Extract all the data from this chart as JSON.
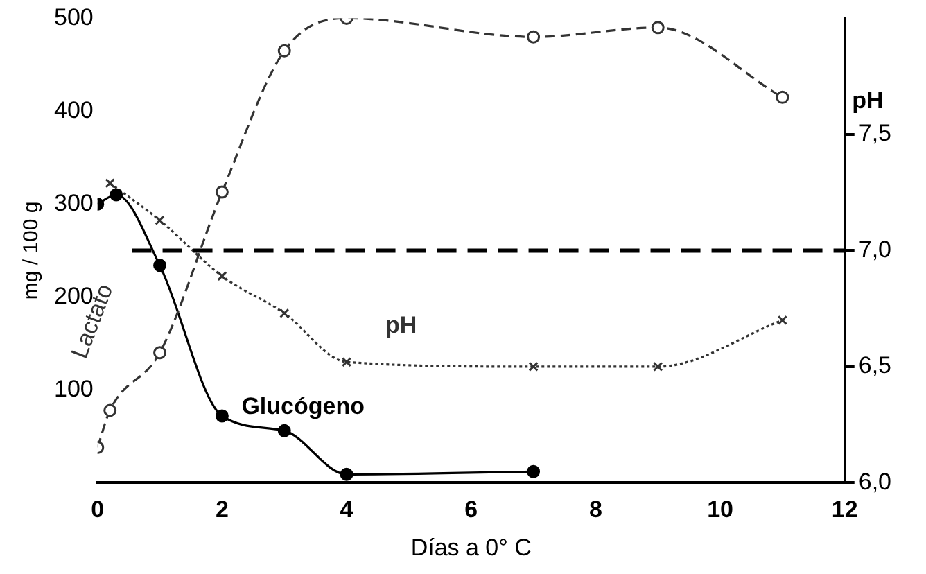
{
  "chart_data": {
    "type": "line",
    "xlabel": "Días a 0° C",
    "ylabel": "mg / 100 g",
    "y2label": "pH",
    "xlim": [
      0,
      12
    ],
    "xticks": [
      0,
      2,
      4,
      6,
      8,
      10,
      12
    ],
    "ylim": [
      0,
      500
    ],
    "yticks": [
      100,
      200,
      300,
      400,
      500
    ],
    "y2lim": [
      6,
      8
    ],
    "y2ticks": [
      {
        "value": 6,
        "label": "6,0"
      },
      {
        "value": 6.5,
        "label": "6,5"
      },
      {
        "value": 7,
        "label": "7,0"
      },
      {
        "value": 7.5,
        "label": "7,5"
      }
    ],
    "grid": false,
    "legend": false,
    "ref_lines": [
      {
        "axis": "y2",
        "value": 7,
        "color": "#000000",
        "line_style": "dashed"
      }
    ],
    "series": [
      {
        "name": "Lactato",
        "color": "#333333",
        "marker": "circle",
        "line_style": "dashed",
        "x": [
          0,
          0.2,
          1,
          2,
          3,
          4,
          7,
          9,
          11
        ],
        "values": [
          38,
          78,
          140,
          313,
          465,
          500,
          480,
          490,
          415
        ]
      },
      {
        "name": "Glucógeno",
        "color": "#000000",
        "marker": "circle",
        "line_style": "solid",
        "x": [
          0,
          0.3,
          1,
          2,
          3,
          4,
          7
        ],
        "values": [
          300,
          310,
          234,
          72,
          56,
          9,
          12
        ]
      },
      {
        "name": "pH",
        "color": "#333333",
        "marker": "cross",
        "line_style": "dotted",
        "axis": "y2",
        "x": [
          0.2,
          1,
          2,
          3,
          4,
          7,
          9,
          11
        ],
        "values": [
          7.29,
          7.13,
          6.89,
          6.73,
          6.52,
          6.5,
          6.5,
          6.7
        ]
      }
    ]
  }
}
